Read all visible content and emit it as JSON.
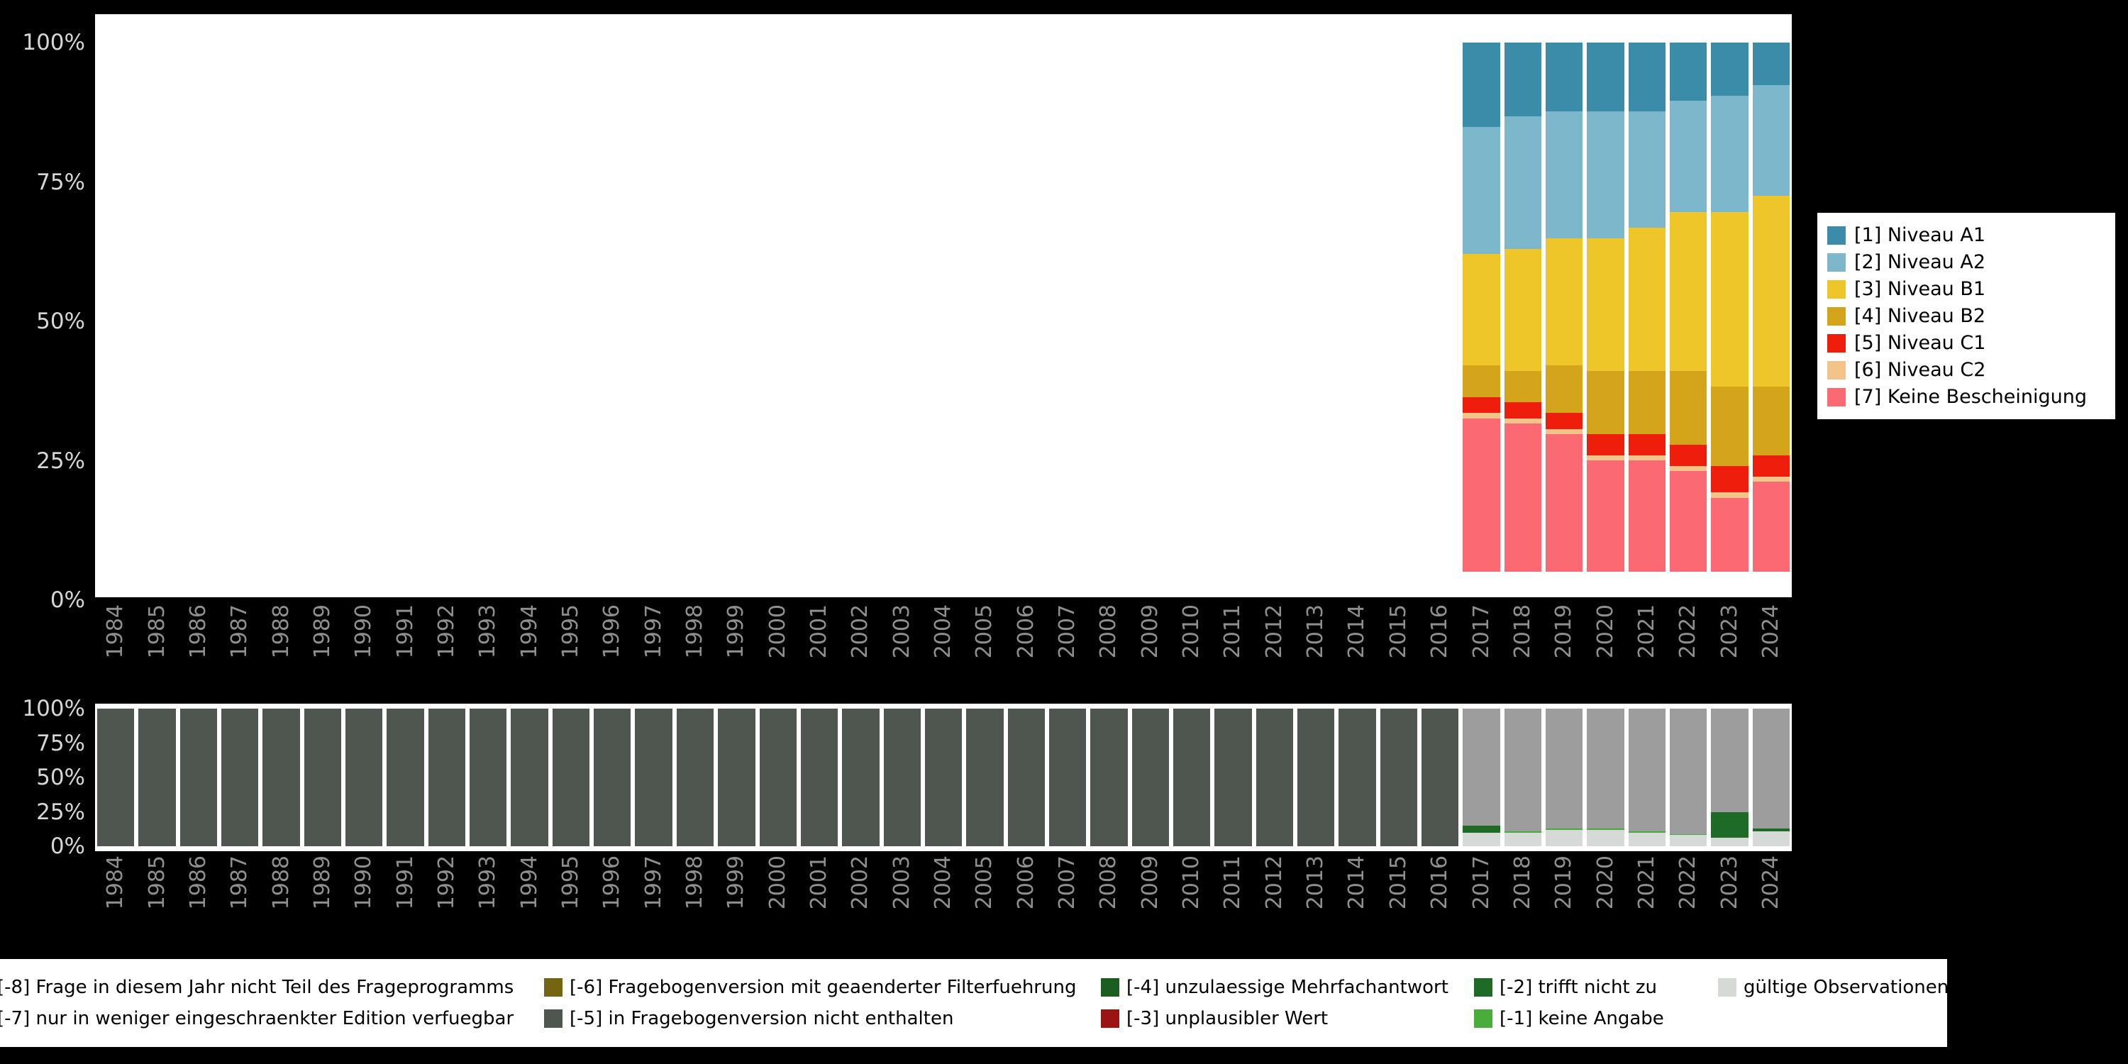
{
  "colors": {
    "background": "#000000",
    "plot_background": "#ffffff",
    "axis_text": "#8f8f8f",
    "ytick_text": "#d6d6d6"
  },
  "chart_data": [
    {
      "id": "levels",
      "type": "bar",
      "stacked": true,
      "title": "",
      "xlabel": "",
      "ylabel": "",
      "ylim": [
        0,
        100
      ],
      "y_ticks": [
        "100%",
        "75%",
        "50%",
        "25%",
        "0%"
      ],
      "years": [
        "1984",
        "1985",
        "1986",
        "1987",
        "1988",
        "1989",
        "1990",
        "1991",
        "1992",
        "1993",
        "1994",
        "1995",
        "1996",
        "1997",
        "1998",
        "1999",
        "2000",
        "2001",
        "2002",
        "2003",
        "2004",
        "2005",
        "2006",
        "2007",
        "2008",
        "2009",
        "2010",
        "2011",
        "2012",
        "2013",
        "2014",
        "2015",
        "2016",
        "2017",
        "2018",
        "2019",
        "2020",
        "2021",
        "2022",
        "2023",
        "2024"
      ],
      "stack_bottom_up": [
        "none",
        "c2",
        "c1",
        "b2",
        "b1",
        "a2",
        "a1"
      ],
      "series_colors": {
        "a1": "#3a8ca8",
        "a2": "#7db7cb",
        "b1": "#efc62a",
        "b2": "#d4a41b",
        "c1": "#ee1d0c",
        "c2": "#f3c489",
        "none": "#fb6a72"
      },
      "legend": [
        {
          "key": "a1",
          "label": "[1] Niveau A1"
        },
        {
          "key": "a2",
          "label": "[2] Niveau A2"
        },
        {
          "key": "b1",
          "label": "[3] Niveau B1"
        },
        {
          "key": "b2",
          "label": "[4] Niveau B2"
        },
        {
          "key": "c1",
          "label": "[5] Niveau C1"
        },
        {
          "key": "c2",
          "label": "[6] Niveau C2"
        },
        {
          "key": "none",
          "label": "[7] Keine Bescheinigung"
        }
      ],
      "bars": {
        "2017": {
          "none": 29,
          "c2": 1,
          "c1": 3,
          "b2": 6,
          "b1": 21,
          "a2": 24,
          "a1": 16
        },
        "2018": {
          "none": 28,
          "c2": 1,
          "c1": 3,
          "b2": 6,
          "b1": 23,
          "a2": 25,
          "a1": 14
        },
        "2019": {
          "none": 26,
          "c2": 1,
          "c1": 3,
          "b2": 9,
          "b1": 24,
          "a2": 24,
          "a1": 13
        },
        "2020": {
          "none": 21,
          "c2": 1,
          "c1": 4,
          "b2": 12,
          "b1": 25,
          "a2": 24,
          "a1": 13
        },
        "2021": {
          "none": 21,
          "c2": 1,
          "c1": 4,
          "b2": 12,
          "b1": 27,
          "a2": 22,
          "a1": 13
        },
        "2022": {
          "none": 19,
          "c2": 1,
          "c1": 4,
          "b2": 14,
          "b1": 30,
          "a2": 21,
          "a1": 11
        },
        "2023": {
          "none": 14,
          "c2": 1,
          "c1": 5,
          "b2": 15,
          "b1": 33,
          "a2": 22,
          "a1": 10
        },
        "2024": {
          "none": 17,
          "c2": 1,
          "c1": 4,
          "b2": 13,
          "b1": 36,
          "a2": 21,
          "a1": 8
        }
      }
    },
    {
      "id": "missings",
      "type": "bar",
      "stacked": true,
      "title": "",
      "xlabel": "",
      "ylabel": "",
      "ylim": [
        0,
        100
      ],
      "y_ticks": [
        "100%",
        "75%",
        "50%",
        "25%",
        "0%"
      ],
      "years": [
        "1984",
        "1985",
        "1986",
        "1987",
        "1988",
        "1989",
        "1990",
        "1991",
        "1992",
        "1993",
        "1994",
        "1995",
        "1996",
        "1997",
        "1998",
        "1999",
        "2000",
        "2001",
        "2002",
        "2003",
        "2004",
        "2005",
        "2006",
        "2007",
        "2008",
        "2009",
        "2010",
        "2011",
        "2012",
        "2013",
        "2014",
        "2015",
        "2016",
        "2017",
        "2018",
        "2019",
        "2020",
        "2021",
        "2022",
        "2023",
        "2024"
      ],
      "stack_bottom_up": [
        "valid",
        "m1",
        "m2",
        "m3",
        "m4",
        "m5",
        "m6",
        "m7",
        "m8"
      ],
      "series_colors": {
        "m8": "#53350f",
        "m7": "#9d9d9d",
        "m6": "#756410",
        "m5": "#4f554f",
        "m4": "#1c5e20",
        "m3": "#9c1313",
        "m2": "#1d6b26",
        "m1": "#49ad3c",
        "valid": "#d6dad6"
      },
      "legend_labels": {
        "m8": "[-8] Frage in diesem Jahr nicht Teil des Frageprogramms",
        "m7": "[-7] nur in weniger eingeschraenkter Edition verfuegbar",
        "m6": "[-6] Fragebogenversion mit geaenderter Filterfuehrung",
        "m5": "[-5] in Fragebogenversion nicht enthalten",
        "m4": "[-4] unzulaessige Mehrfachantwort",
        "m3": "[-3] unplausibler Wert",
        "m2": "[-2] trifft nicht zu",
        "m1": "[-1] keine Angabe",
        "valid": "gültige Observationen"
      },
      "legend_columns": [
        [
          "m8",
          "m7"
        ],
        [
          "m6",
          "m5"
        ],
        [
          "m4",
          "m3"
        ],
        [
          "m2",
          "m1"
        ],
        [
          "valid"
        ]
      ],
      "bars": {
        "1984": {
          "m5": 100
        },
        "1985": {
          "m5": 100
        },
        "1986": {
          "m5": 100
        },
        "1987": {
          "m5": 100
        },
        "1988": {
          "m5": 100
        },
        "1989": {
          "m5": 100
        },
        "1990": {
          "m5": 100
        },
        "1991": {
          "m5": 100
        },
        "1992": {
          "m5": 100
        },
        "1993": {
          "m5": 100
        },
        "1994": {
          "m5": 100
        },
        "1995": {
          "m5": 100
        },
        "1996": {
          "m5": 100
        },
        "1997": {
          "m5": 100
        },
        "1998": {
          "m5": 100
        },
        "1999": {
          "m5": 100
        },
        "2000": {
          "m5": 100
        },
        "2001": {
          "m5": 100
        },
        "2002": {
          "m5": 100
        },
        "2003": {
          "m5": 100
        },
        "2004": {
          "m5": 100
        },
        "2005": {
          "m5": 100
        },
        "2006": {
          "m5": 100
        },
        "2007": {
          "m5": 100
        },
        "2008": {
          "m5": 100
        },
        "2009": {
          "m5": 100
        },
        "2010": {
          "m5": 100
        },
        "2011": {
          "m5": 100
        },
        "2012": {
          "m5": 100
        },
        "2013": {
          "m5": 100
        },
        "2014": {
          "m5": 100
        },
        "2015": {
          "m5": 100
        },
        "2016": {
          "m5": 100
        },
        "2017": {
          "valid": 10,
          "m2": 5,
          "m7": 85
        },
        "2018": {
          "valid": 10,
          "m1": 1,
          "m7": 89
        },
        "2019": {
          "valid": 12,
          "m1": 1,
          "m7": 87
        },
        "2020": {
          "valid": 12,
          "m1": 1,
          "m7": 87
        },
        "2021": {
          "valid": 10,
          "m1": 1,
          "m7": 89
        },
        "2022": {
          "valid": 8,
          "m1": 1,
          "m7": 91
        },
        "2023": {
          "valid": 6,
          "m2": 19,
          "m7": 75
        },
        "2024": {
          "valid": 11,
          "m2": 2,
          "m7": 87
        }
      }
    }
  ]
}
